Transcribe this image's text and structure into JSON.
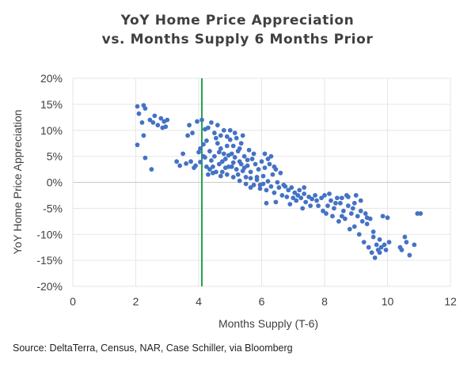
{
  "chart_data": {
    "type": "scatter",
    "title": [
      "YoY Home Price Appreciation",
      "vs. Months Supply 6 Months Prior"
    ],
    "xlabel": "Months Supply (T-6)",
    "ylabel": "YoY Home Price Appreciation",
    "xlim": [
      0,
      12
    ],
    "ylim": [
      -20,
      20
    ],
    "xticks": [
      "0",
      "2",
      "4",
      "6",
      "8",
      "10",
      "12"
    ],
    "yticks": [
      "20%",
      "15%",
      "10%",
      "5%",
      "0%",
      "-5%",
      "-10%",
      "-15%",
      "-20%"
    ],
    "grid": true,
    "point_color": "#4472C4",
    "reference_line": {
      "x": 4.1,
      "color": "#1FA34A"
    },
    "points": [
      [
        2.05,
        14.6
      ],
      [
        2.1,
        13.2
      ],
      [
        2.25,
        14.8
      ],
      [
        2.3,
        14.2
      ],
      [
        2.2,
        11.5
      ],
      [
        2.45,
        12.0
      ],
      [
        2.55,
        11.5
      ],
      [
        2.6,
        12.8
      ],
      [
        2.7,
        11.0
      ],
      [
        2.8,
        12.3
      ],
      [
        2.9,
        11.7
      ],
      [
        2.95,
        10.7
      ],
      [
        3.0,
        12.0
      ],
      [
        2.05,
        7.2
      ],
      [
        2.25,
        9.0
      ],
      [
        2.3,
        4.7
      ],
      [
        2.5,
        2.5
      ],
      [
        2.85,
        10.5
      ],
      [
        3.3,
        4.0
      ],
      [
        3.4,
        3.2
      ],
      [
        3.5,
        5.5
      ],
      [
        3.6,
        3.6
      ],
      [
        3.65,
        9.0
      ],
      [
        3.7,
        11.0
      ],
      [
        3.75,
        4.0
      ],
      [
        3.8,
        9.5
      ],
      [
        3.85,
        2.8
      ],
      [
        3.9,
        3.2
      ],
      [
        3.95,
        11.7
      ],
      [
        4.0,
        5.8
      ],
      [
        4.05,
        3.9
      ],
      [
        4.1,
        12.0
      ],
      [
        4.15,
        7.3
      ],
      [
        4.2,
        4.8
      ],
      [
        4.25,
        3.0
      ],
      [
        4.2,
        10.2
      ],
      [
        4.3,
        10.5
      ],
      [
        4.35,
        6.0
      ],
      [
        4.4,
        4.2
      ],
      [
        4.45,
        1.8
      ],
      [
        4.3,
        1.5
      ],
      [
        4.5,
        5.0
      ],
      [
        4.55,
        8.5
      ],
      [
        4.6,
        11.0
      ],
      [
        4.65,
        3.5
      ],
      [
        4.7,
        6.5
      ],
      [
        4.75,
        2.0
      ],
      [
        4.8,
        10.0
      ],
      [
        4.85,
        4.5
      ],
      [
        4.9,
        7.0
      ],
      [
        4.95,
        3.0
      ],
      [
        5.0,
        8.2
      ],
      [
        5.05,
        5.5
      ],
      [
        5.1,
        3.8
      ],
      [
        5.15,
        9.5
      ],
      [
        5.2,
        2.5
      ],
      [
        5.25,
        6.0
      ],
      [
        5.3,
        4.0
      ],
      [
        5.35,
        7.5
      ],
      [
        5.4,
        2.2
      ],
      [
        5.45,
        5.0
      ],
      [
        5.5,
        1.0
      ],
      [
        5.55,
        3.2
      ],
      [
        5.6,
        6.2
      ],
      [
        5.65,
        0.8
      ],
      [
        5.7,
        4.5
      ],
      [
        4.4,
        11.5
      ],
      [
        4.5,
        9.5
      ],
      [
        4.6,
        7.5
      ],
      [
        4.7,
        9.0
      ],
      [
        4.8,
        5.5
      ],
      [
        4.9,
        8.8
      ],
      [
        5.0,
        10.0
      ],
      [
        5.1,
        7.0
      ],
      [
        5.2,
        8.5
      ],
      [
        5.3,
        6.5
      ],
      [
        5.4,
        9.0
      ],
      [
        4.05,
        6.5
      ],
      [
        4.15,
        5.0
      ],
      [
        4.25,
        8.0
      ],
      [
        4.35,
        2.5
      ],
      [
        4.45,
        3.0
      ],
      [
        4.55,
        2.0
      ],
      [
        4.65,
        5.8
      ],
      [
        4.75,
        4.0
      ],
      [
        4.85,
        2.8
      ],
      [
        4.95,
        5.2
      ],
      [
        5.05,
        3.0
      ],
      [
        5.15,
        4.8
      ],
      [
        5.25,
        1.5
      ],
      [
        5.35,
        3.5
      ],
      [
        5.45,
        2.8
      ],
      [
        5.55,
        4.3
      ],
      [
        5.65,
        2.0
      ],
      [
        5.75,
        5.5
      ],
      [
        5.8,
        3.5
      ],
      [
        5.85,
        0.5
      ],
      [
        5.9,
        2.5
      ],
      [
        5.95,
        -0.5
      ],
      [
        6.0,
        4.0
      ],
      [
        6.05,
        1.2
      ],
      [
        6.1,
        2.8
      ],
      [
        6.15,
        -1.5
      ],
      [
        6.2,
        0.2
      ],
      [
        6.25,
        3.5
      ],
      [
        6.3,
        -0.8
      ],
      [
        6.35,
        1.5
      ],
      [
        6.4,
        -2.0
      ],
      [
        6.45,
        2.5
      ],
      [
        6.5,
        0.0
      ],
      [
        6.55,
        -1.0
      ],
      [
        6.6,
        1.8
      ],
      [
        6.65,
        -2.5
      ],
      [
        6.7,
        -0.5
      ],
      [
        6.1,
        5.5
      ],
      [
        6.2,
        4.5
      ],
      [
        6.3,
        5.0
      ],
      [
        6.4,
        3.0
      ],
      [
        5.75,
        -0.5
      ],
      [
        5.65,
        -1.0
      ],
      [
        5.85,
        1.0
      ],
      [
        5.95,
        -1.2
      ],
      [
        6.05,
        -0.3
      ],
      [
        4.7,
        1.2
      ],
      [
        4.9,
        1.5
      ],
      [
        5.1,
        1.0
      ],
      [
        5.3,
        0.3
      ],
      [
        5.5,
        -0.3
      ],
      [
        6.15,
        -4.0
      ],
      [
        6.45,
        -3.8
      ],
      [
        6.75,
        -0.8
      ],
      [
        6.8,
        -2.8
      ],
      [
        6.85,
        -1.5
      ],
      [
        6.9,
        -4.2
      ],
      [
        6.95,
        -1.0
      ],
      [
        7.0,
        -3.0
      ],
      [
        7.05,
        -2.0
      ],
      [
        7.1,
        -3.5
      ],
      [
        7.15,
        -2.5
      ],
      [
        7.2,
        -1.5
      ],
      [
        7.25,
        -3.0
      ],
      [
        7.3,
        -5.0
      ],
      [
        7.35,
        -2.2
      ],
      [
        7.4,
        -3.8
      ],
      [
        7.5,
        -2.8
      ],
      [
        7.6,
        -3.2
      ],
      [
        7.7,
        -2.5
      ],
      [
        7.8,
        -4.5
      ],
      [
        7.9,
        -3.0
      ],
      [
        8.0,
        -2.5
      ],
      [
        8.05,
        -6.0
      ],
      [
        8.1,
        -4.5
      ],
      [
        8.2,
        -3.5
      ],
      [
        8.25,
        -6.5
      ],
      [
        8.3,
        -5.0
      ],
      [
        8.4,
        -3.0
      ],
      [
        8.45,
        -7.5
      ],
      [
        8.5,
        -4.0
      ],
      [
        8.55,
        -3.0
      ],
      [
        8.6,
        -5.5
      ],
      [
        8.65,
        -7.0
      ],
      [
        8.7,
        -2.5
      ],
      [
        8.75,
        -4.5
      ],
      [
        8.8,
        -9.0
      ],
      [
        8.85,
        -6.0
      ],
      [
        8.9,
        -5.0
      ],
      [
        8.95,
        -8.5
      ],
      [
        9.0,
        -2.5
      ],
      [
        9.05,
        -6.5
      ],
      [
        9.1,
        -10.0
      ],
      [
        9.15,
        -5.5
      ],
      [
        9.2,
        -7.5
      ],
      [
        9.25,
        -11.5
      ],
      [
        9.3,
        -6.0
      ],
      [
        9.35,
        -8.0
      ],
      [
        9.4,
        -12.5
      ],
      [
        9.45,
        -7.0
      ],
      [
        9.5,
        -13.5
      ],
      [
        9.55,
        -9.5
      ],
      [
        9.6,
        -14.5
      ],
      [
        9.65,
        -12.0
      ],
      [
        9.7,
        -13.0
      ],
      [
        9.75,
        -11.0
      ],
      [
        9.8,
        -12.5
      ],
      [
        9.85,
        -6.5
      ],
      [
        9.9,
        -12.0
      ],
      [
        9.95,
        -13.0
      ],
      [
        10.0,
        -6.8
      ],
      [
        10.05,
        -11.5
      ],
      [
        10.4,
        -12.5
      ],
      [
        10.45,
        -13.0
      ],
      [
        10.55,
        -10.5
      ],
      [
        10.6,
        -11.5
      ],
      [
        10.7,
        -14.0
      ],
      [
        10.85,
        -12.0
      ],
      [
        10.95,
        -6.0
      ],
      [
        11.05,
        -6.0
      ],
      [
        7.35,
        -1.0
      ],
      [
        7.55,
        -4.5
      ],
      [
        7.75,
        -3.5
      ],
      [
        7.95,
        -5.5
      ],
      [
        8.15,
        -2.2
      ],
      [
        8.35,
        -4.0
      ],
      [
        8.55,
        -6.5
      ],
      [
        8.75,
        -2.8
      ],
      [
        8.95,
        -4.0
      ],
      [
        9.15,
        -3.5
      ],
      [
        9.35,
        -6.8
      ],
      [
        9.55,
        -10.5
      ],
      [
        9.75,
        -13.5
      ]
    ]
  },
  "source": "Source: DeltaTerra, Census, NAR, Case Schiller, via Bloomberg"
}
